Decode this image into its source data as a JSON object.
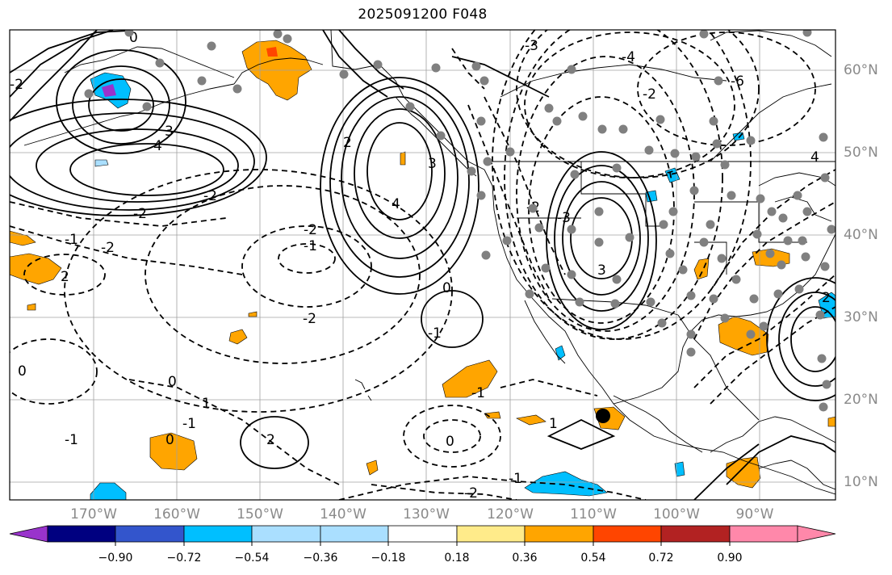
{
  "title": "2025091200 F048",
  "lat_labels": [
    "60°N",
    "50°N",
    "40°N",
    "30°N",
    "20°N",
    "10°N"
  ],
  "lon_labels": [
    "170°W",
    "160°W",
    "150°W",
    "140°W",
    "130°W",
    "120°W",
    "110°W",
    "100°W",
    "90°W"
  ],
  "contour_labels": [
    "0",
    "-2",
    "4",
    "3",
    "-2",
    "-2",
    "-1",
    "-2",
    "2",
    "0",
    "-1",
    "-2",
    "-2",
    "-1",
    "0",
    "1",
    "-1",
    "0",
    "2",
    "4",
    "2",
    "3",
    "-3",
    "-4",
    "-6",
    "-2",
    "-2",
    "3",
    "-3",
    "-1",
    "0",
    "-1",
    "1",
    "0",
    "-1",
    "-2",
    "2",
    "4"
  ],
  "colorbar": {
    "tick_labels": [
      "−0.90",
      "−0.72",
      "−0.54",
      "−0.36",
      "−0.18",
      "0.18",
      "0.36",
      "0.54",
      "0.72",
      "0.90"
    ],
    "colors": [
      "#9933cc",
      "#000080",
      "#3355cc",
      "#00bfff",
      "#aadfff",
      "#ffffff",
      "#ffeb8a",
      "#ffa500",
      "#ff4500",
      "#b22222",
      "#ff88aa"
    ]
  },
  "colors": {
    "positive_strong": "#ffa500",
    "negative_strong": "#00bfff",
    "negative_light": "#aadfff",
    "station_dot": "#808080"
  }
}
